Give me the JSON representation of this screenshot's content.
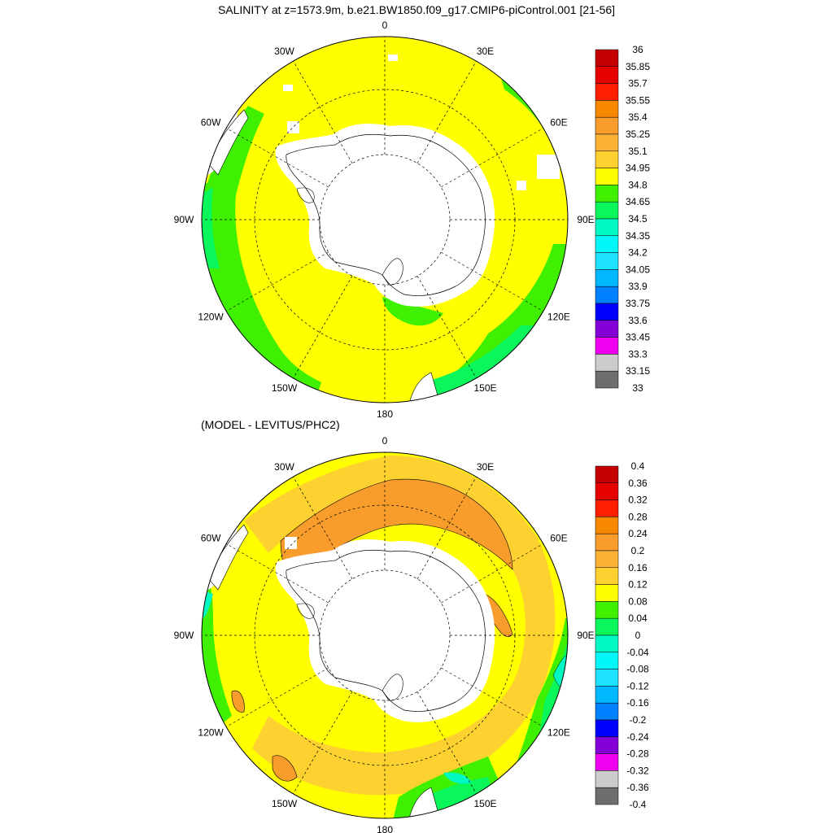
{
  "title": "SALINITY at z=1573.9m, b.e21.BW1850.f09_g17.CMIP6-piControl.001 [21-56]",
  "subtitle": "(MODEL - LEVITUS/PHC2)",
  "longitude_labels": [
    {
      "text": "0",
      "lon": 0
    },
    {
      "text": "30E",
      "lon": 30
    },
    {
      "text": "60E",
      "lon": 60
    },
    {
      "text": "90E",
      "lon": 90
    },
    {
      "text": "120E",
      "lon": 120
    },
    {
      "text": "150E",
      "lon": 150
    },
    {
      "text": "180",
      "lon": 180
    },
    {
      "text": "150W",
      "lon": -150
    },
    {
      "text": "120W",
      "lon": -120
    },
    {
      "text": "90W",
      "lon": -90
    },
    {
      "text": "60W",
      "lon": -60
    },
    {
      "text": "30W",
      "lon": -30
    }
  ],
  "colors": {
    "antarctica": "#ffffff",
    "coast": "#000000",
    "grid": "#000000"
  },
  "top_colorbar": {
    "labels": [
      "36",
      "35.85",
      "35.7",
      "35.55",
      "35.4",
      "35.25",
      "35.1",
      "34.95",
      "34.8",
      "34.65",
      "34.5",
      "34.35",
      "34.2",
      "34.05",
      "33.9",
      "33.75",
      "33.6",
      "33.45",
      "33.3",
      "33.15",
      "33"
    ],
    "colors": [
      "#c40000",
      "#e60000",
      "#ff1e00",
      "#f78800",
      "#f89c2c",
      "#fbb237",
      "#fdd230",
      "#ffff00",
      "#3ff000",
      "#0af75c",
      "#00f9c2",
      "#00f8f8",
      "#1ee2ff",
      "#00b8ff",
      "#0082ff",
      "#0000ff",
      "#8400d8",
      "#f000f0",
      "#cccccc",
      "#6e6e6e"
    ]
  },
  "bottom_colorbar": {
    "labels": [
      "0.4",
      "0.36",
      "0.32",
      "0.28",
      "0.24",
      "0.2",
      "0.16",
      "0.12",
      "0.08",
      "0.04",
      "0",
      "-0.04",
      "-0.08",
      "-0.12",
      "-0.16",
      "-0.2",
      "-0.24",
      "-0.28",
      "-0.32",
      "-0.36",
      "-0.4"
    ],
    "colors": [
      "#c40000",
      "#e60000",
      "#ff1e00",
      "#f78800",
      "#f89c2c",
      "#fbb237",
      "#fdd230",
      "#ffff00",
      "#3ff000",
      "#0af75c",
      "#00f9c2",
      "#00f8f8",
      "#1ee2ff",
      "#00b8ff",
      "#0082ff",
      "#0000ff",
      "#8400d8",
      "#f000f0",
      "#cccccc",
      "#6e6e6e"
    ]
  },
  "top_map": {
    "dominant_value_class": "34.8-34.95",
    "field_colors": {
      "main": "#ffff00",
      "ring": "#3ff000",
      "edge": "#0af75c"
    }
  },
  "bottom_map": {
    "dominant_value_class": "0.08-0.12",
    "field_colors": {
      "main": "#ffff00",
      "warm": "#fdd230",
      "warmer": "#f89c2c",
      "green": "#3ff000",
      "edge": "#0af75c",
      "cyan": "#00f9c2"
    }
  }
}
